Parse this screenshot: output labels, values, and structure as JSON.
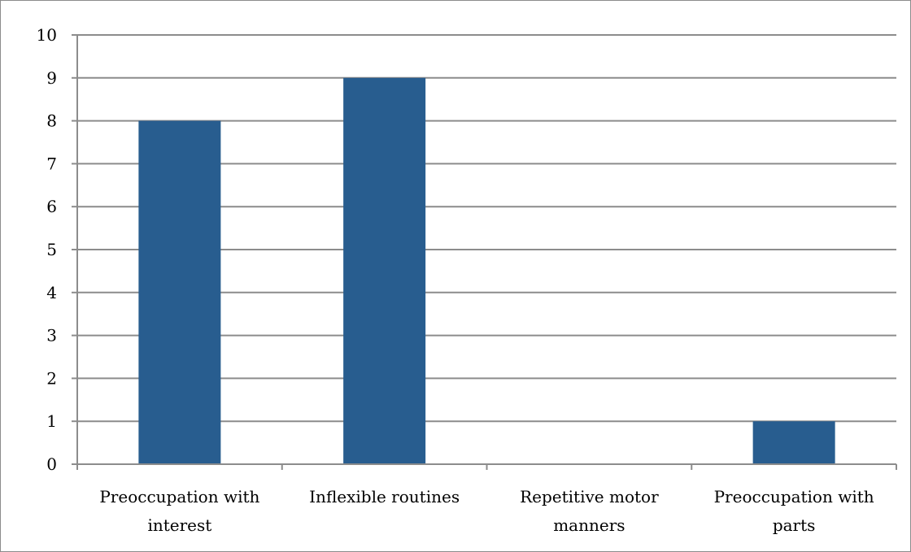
{
  "chart_data": {
    "type": "bar",
    "categories": [
      [
        "Preoccupation with",
        "interest"
      ],
      [
        "Inflexible routines"
      ],
      [
        "Repetitive motor",
        "manners"
      ],
      [
        "Preoccupation with",
        "parts"
      ]
    ],
    "values": [
      8,
      9,
      0,
      1
    ],
    "ylim": [
      0,
      10
    ],
    "yticks": [
      "0",
      "1",
      "2",
      "3",
      "4",
      "5",
      "6",
      "7",
      "8",
      "9",
      "10"
    ],
    "grid": true,
    "bar_color": "#285d8f",
    "grid_color": "#8c8c8c"
  }
}
